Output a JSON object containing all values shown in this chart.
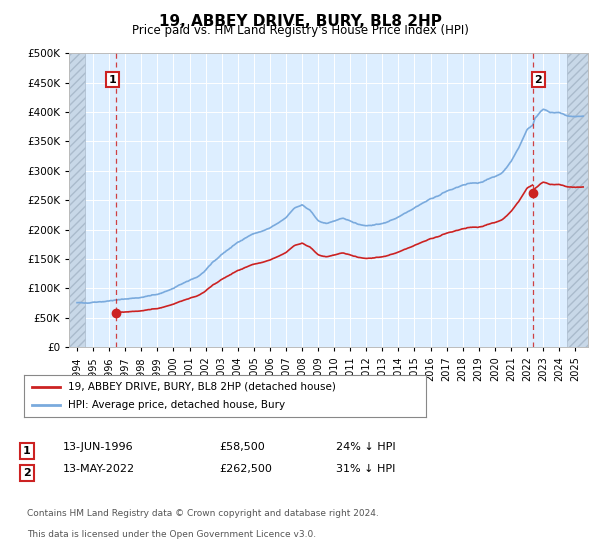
{
  "title": "19, ABBEY DRIVE, BURY, BL8 2HP",
  "subtitle": "Price paid vs. HM Land Registry's House Price Index (HPI)",
  "legend_line1": "19, ABBEY DRIVE, BURY, BL8 2HP (detached house)",
  "legend_line2": "HPI: Average price, detached house, Bury",
  "annotation1_label": "1",
  "annotation1_date": "13-JUN-1996",
  "annotation1_price": 58500,
  "annotation1_hpi": "24% ↓ HPI",
  "annotation2_label": "2",
  "annotation2_date": "13-MAY-2022",
  "annotation2_price": 262500,
  "annotation2_hpi": "31% ↓ HPI",
  "footnote1": "Contains HM Land Registry data © Crown copyright and database right 2024.",
  "footnote2": "This data is licensed under the Open Government Licence v3.0.",
  "sale1_year": 1996.45,
  "sale1_price": 58500,
  "sale2_year": 2022.37,
  "sale2_price": 262500,
  "hpi_color": "#7aaadd",
  "sale_color": "#cc2222",
  "dashed_color": "#cc2222",
  "bg_plot": "#ddeeff",
  "bg_hatch_color": "#c8d8e8",
  "ylim_min": 0,
  "ylim_max": 500000,
  "ytick_step": 50000,
  "xlim_min": 1993.5,
  "xlim_max": 2025.8,
  "hatch_left_end": 1994.5,
  "hatch_right_start": 2024.5
}
